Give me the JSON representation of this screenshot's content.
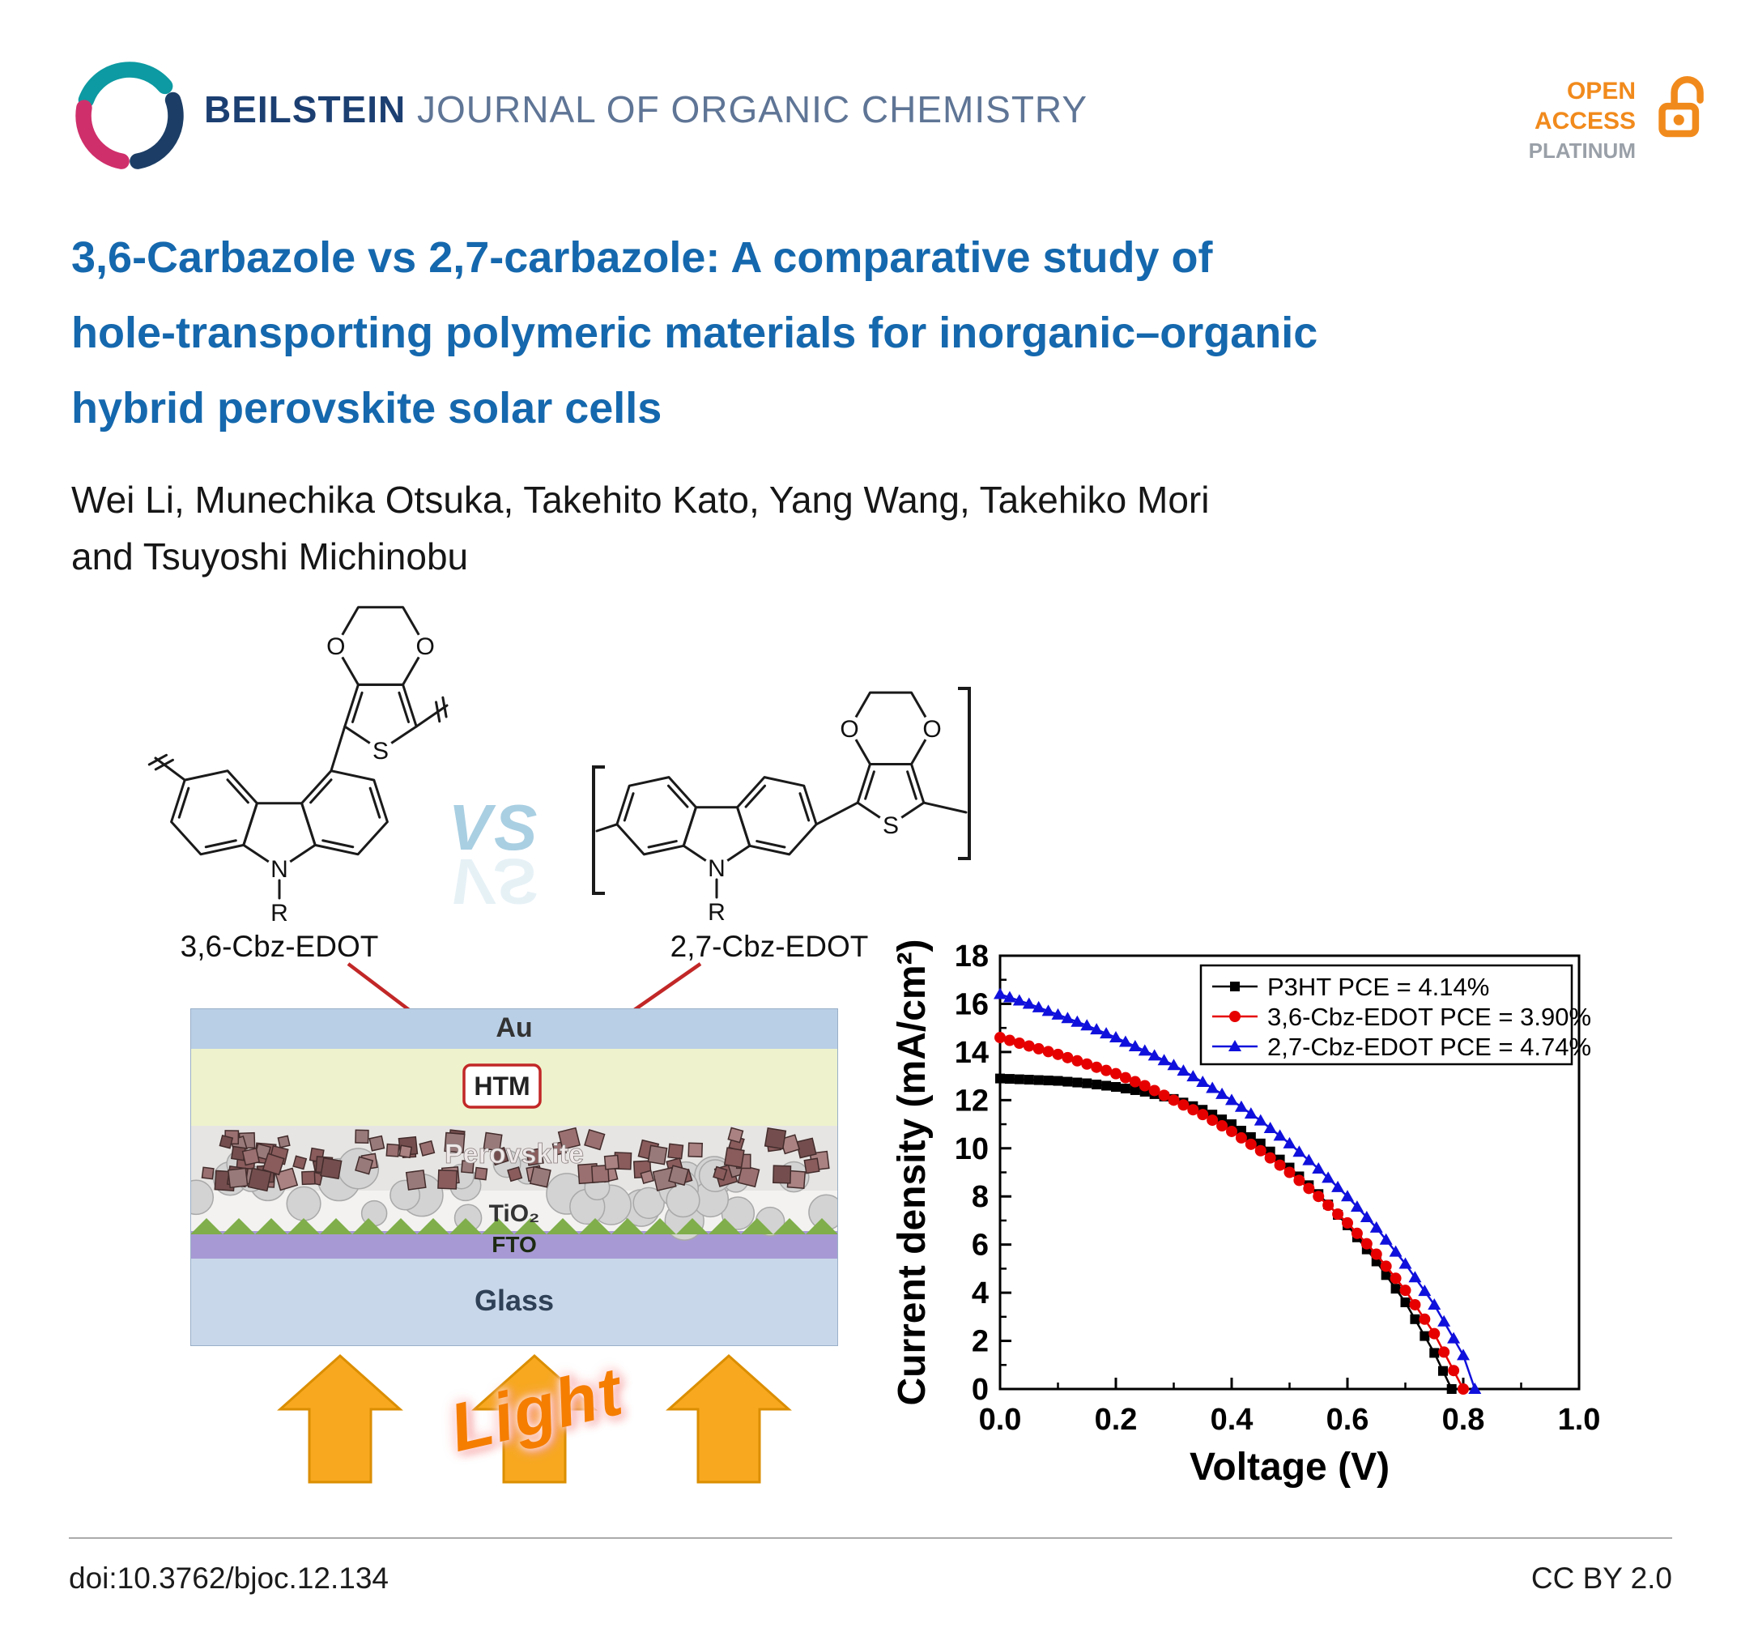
{
  "header": {
    "journal_title_bold": "BEILSTEIN",
    "journal_title_rest": " JOURNAL OF ORGANIC CHEMISTRY",
    "open_access": {
      "line1": "OPEN",
      "line2": "ACCESS",
      "line3": "PLATINUM"
    },
    "colors": {
      "journal_bold": "#1c3f72",
      "journal_rest": "#5f7596",
      "open_access_orange": "#f18a1c",
      "platinum_gray": "#9aa0a8"
    }
  },
  "title_lines": [
    "3,6-Carbazole vs 2,7-carbazole: A comparative study of",
    "hole-transporting polymeric materials for inorganic–organic",
    "hybrid perovskite solar cells"
  ],
  "title_color": "#1568ad",
  "authors_lines": [
    "Wei Li, Munechika Otsuka, Takehito Kato, Yang Wang, Takehiko Mori",
    "and Tsuyoshi Michinobu"
  ],
  "structures": {
    "vs": "VS",
    "atom_labels": {
      "n": "N",
      "r": "R",
      "s": "S",
      "o": "O"
    },
    "left": {
      "label": "3,6-Cbz-EDOT"
    },
    "right": {
      "label": "2,7-Cbz-EDOT"
    }
  },
  "device": {
    "layers": [
      {
        "id": "au",
        "label": "Au",
        "color": "#b9cfe6",
        "height": 50
      },
      {
        "id": "htm",
        "label": "HTM",
        "color": "#eef3cd",
        "height": 95
      },
      {
        "id": "perovskite",
        "label": "Perovskite",
        "color": "#e7e5e3",
        "height": 80
      },
      {
        "id": "tio2",
        "label": "TiO₂",
        "color": "#f3f2f1",
        "height": 50
      },
      {
        "id": "fto",
        "label": "FTO",
        "color": "#a79ad4",
        "height": 34
      },
      {
        "id": "glass",
        "label": "Glass",
        "color": "#c9d7ea",
        "height": 108
      }
    ],
    "light_label": "Light",
    "htm_box_color": "#c22727"
  },
  "chart_data": {
    "type": "scatter",
    "xlabel": "Voltage (V)",
    "ylabel": "Current density (mA/cm²)",
    "xlim": [
      0.0,
      1.0
    ],
    "ylim": [
      0,
      18
    ],
    "xticks": [
      "0.0",
      "0.2",
      "0.4",
      "0.6",
      "0.8",
      "1.0"
    ],
    "yticks": [
      0,
      2,
      4,
      6,
      8,
      10,
      12,
      14,
      16,
      18
    ],
    "grid": false,
    "legend_position": "top-right",
    "series": [
      {
        "name": "P3HT PCE = 4.14%",
        "color": "#000000",
        "marker": "square",
        "x": [
          0,
          0.05,
          0.1,
          0.15,
          0.2,
          0.25,
          0.3,
          0.35,
          0.4,
          0.45,
          0.5,
          0.55,
          0.6,
          0.65,
          0.7,
          0.75,
          0.78
        ],
        "y": [
          12.9,
          12.85,
          12.8,
          12.7,
          12.55,
          12.35,
          12.05,
          11.6,
          11.0,
          10.2,
          9.2,
          8.1,
          6.8,
          5.3,
          3.6,
          1.5,
          0
        ]
      },
      {
        "name": "3,6-Cbz-EDOT PCE = 3.90%",
        "color": "#e60000",
        "marker": "circle",
        "x": [
          0,
          0.05,
          0.1,
          0.15,
          0.2,
          0.25,
          0.3,
          0.35,
          0.4,
          0.45,
          0.5,
          0.55,
          0.6,
          0.65,
          0.7,
          0.75,
          0.8
        ],
        "y": [
          14.6,
          14.25,
          13.9,
          13.5,
          13.1,
          12.6,
          12.0,
          11.4,
          10.7,
          9.9,
          9.0,
          8.0,
          6.9,
          5.6,
          4.1,
          2.3,
          0
        ]
      },
      {
        "name": "2,7-Cbz-EDOT PCE = 4.74%",
        "color": "#1010dc",
        "marker": "triangle",
        "x": [
          0,
          0.05,
          0.1,
          0.15,
          0.2,
          0.25,
          0.3,
          0.35,
          0.4,
          0.45,
          0.5,
          0.55,
          0.6,
          0.65,
          0.7,
          0.75,
          0.8,
          0.82
        ],
        "y": [
          16.4,
          16.0,
          15.55,
          15.1,
          14.6,
          14.05,
          13.45,
          12.75,
          12.0,
          11.15,
          10.2,
          9.15,
          8.0,
          6.7,
          5.2,
          3.5,
          1.4,
          0
        ]
      }
    ]
  },
  "footer": {
    "doi": "doi:10.3762/bjoc.12.134",
    "license": "CC BY 2.0"
  }
}
